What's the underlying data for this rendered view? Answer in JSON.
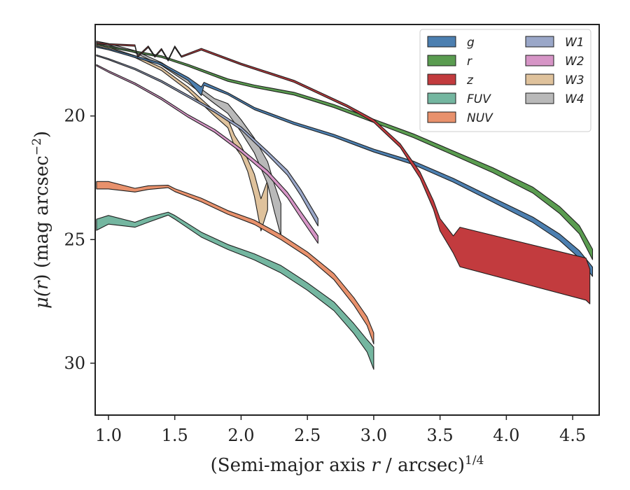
{
  "chart_data": {
    "type": "area",
    "xlabel_main": "(Semi-major axis ",
    "xlabel_var": "r",
    "xlabel_unit": " / arcsec)",
    "xlabel_sup": "1/4",
    "ylabel_pre": "μ(",
    "ylabel_var": "r",
    "ylabel_post": ") (mag arcsec",
    "ylabel_sup": "−2",
    "ylabel_close": ")",
    "xlim": [
      0.9,
      4.7
    ],
    "ylim": [
      32.1,
      16.3
    ],
    "y_inverted": true,
    "x_ticks": [
      1.0,
      1.5,
      2.0,
      2.5,
      3.0,
      3.5,
      4.0,
      4.5
    ],
    "x_tick_labels": [
      "1.0",
      "1.5",
      "2.0",
      "2.5",
      "3.0",
      "3.5",
      "4.0",
      "4.5"
    ],
    "y_ticks": [
      20,
      25,
      30
    ],
    "y_tick_labels": [
      "20",
      "25",
      "30"
    ],
    "legend_position": "top-right",
    "legend_columns": 2,
    "grid": false,
    "series": [
      {
        "name": "g",
        "color": "#4c7fb0",
        "x": [
          0.91,
          1.0,
          1.2,
          1.4,
          1.6,
          1.7,
          1.72,
          1.9,
          2.1,
          2.4,
          2.7,
          3.0,
          3.3,
          3.6,
          3.9,
          4.2,
          4.4,
          4.55,
          4.65
        ],
        "y": [
          17.2,
          17.3,
          17.6,
          17.9,
          18.5,
          19.0,
          18.7,
          19.1,
          19.7,
          20.3,
          20.8,
          21.4,
          21.9,
          22.6,
          23.4,
          24.2,
          24.9,
          25.6,
          26.3
        ],
        "w": [
          0.05,
          0.05,
          0.07,
          0.08,
          0.12,
          0.35,
          0.12,
          0.08,
          0.09,
          0.1,
          0.11,
          0.12,
          0.14,
          0.16,
          0.18,
          0.22,
          0.26,
          0.3,
          0.38
        ]
      },
      {
        "name": "r",
        "color": "#5a9c50",
        "x": [
          0.91,
          1.0,
          1.2,
          1.4,
          1.6,
          1.8,
          1.9,
          2.1,
          2.4,
          2.7,
          3.0,
          3.3,
          3.6,
          3.9,
          4.2,
          4.4,
          4.55,
          4.65
        ],
        "y": [
          17.1,
          17.2,
          17.4,
          17.6,
          17.95,
          18.35,
          18.55,
          18.8,
          19.1,
          19.6,
          20.2,
          20.8,
          21.5,
          22.2,
          23.0,
          23.8,
          24.6,
          25.6
        ],
        "w": [
          0.05,
          0.05,
          0.06,
          0.07,
          0.08,
          0.09,
          0.1,
          0.1,
          0.11,
          0.12,
          0.13,
          0.15,
          0.17,
          0.2,
          0.24,
          0.28,
          0.33,
          0.42
        ]
      },
      {
        "name": "z",
        "color": "#c23b3e",
        "x": [
          0.91,
          1.0,
          1.2,
          1.22,
          1.3,
          1.35,
          1.4,
          1.45,
          1.5,
          1.55,
          1.7,
          2.0,
          2.4,
          2.8,
          3.0,
          3.2,
          3.35,
          3.45,
          3.5,
          3.6,
          3.65,
          4.6,
          4.63
        ],
        "y": [
          17.05,
          17.1,
          17.15,
          17.6,
          17.2,
          17.6,
          17.3,
          17.75,
          17.2,
          17.6,
          17.3,
          17.9,
          18.6,
          19.6,
          20.2,
          21.2,
          22.4,
          23.6,
          24.4,
          25.2,
          25.3,
          26.6,
          26.9
        ],
        "w": [
          0.05,
          0.05,
          0.06,
          0.05,
          0.06,
          0.05,
          0.06,
          0.05,
          0.06,
          0.05,
          0.07,
          0.07,
          0.08,
          0.09,
          0.12,
          0.15,
          0.25,
          0.35,
          0.5,
          0.7,
          1.6,
          1.7,
          1.4
        ]
      },
      {
        "name": "FUV",
        "color": "#74b6a0",
        "x": [
          0.91,
          1.0,
          1.2,
          1.3,
          1.45,
          1.5,
          1.7,
          1.9,
          2.1,
          2.3,
          2.5,
          2.7,
          2.85,
          2.95,
          3.0
        ],
        "y": [
          24.4,
          24.2,
          24.4,
          24.2,
          23.95,
          24.1,
          24.8,
          25.3,
          25.7,
          26.2,
          26.9,
          27.7,
          28.6,
          29.3,
          29.8
        ],
        "w": [
          0.45,
          0.35,
          0.2,
          0.2,
          0.12,
          0.15,
          0.2,
          0.2,
          0.25,
          0.3,
          0.3,
          0.35,
          0.4,
          0.5,
          0.9
        ]
      },
      {
        "name": "NUV",
        "color": "#e8916c",
        "x": [
          0.91,
          1.0,
          1.2,
          1.3,
          1.45,
          1.5,
          1.7,
          1.9,
          2.1,
          2.3,
          2.5,
          2.7,
          2.85,
          2.95,
          3.0
        ],
        "y": [
          22.8,
          22.8,
          23.0,
          22.9,
          22.85,
          23.0,
          23.4,
          23.9,
          24.3,
          24.9,
          25.6,
          26.5,
          27.5,
          28.3,
          29.0
        ],
        "w": [
          0.3,
          0.3,
          0.15,
          0.15,
          0.1,
          0.12,
          0.15,
          0.15,
          0.18,
          0.2,
          0.2,
          0.25,
          0.3,
          0.35,
          0.45
        ]
      },
      {
        "name": "W1",
        "color": "#9aa7c8",
        "x": [
          0.91,
          1.0,
          1.2,
          1.4,
          1.6,
          1.8,
          2.0,
          2.2,
          2.35,
          2.45,
          2.58
        ],
        "y": [
          17.55,
          17.7,
          18.1,
          18.6,
          19.2,
          19.8,
          20.5,
          21.5,
          22.3,
          23.1,
          24.3
        ],
        "w": [
          0.04,
          0.05,
          0.06,
          0.07,
          0.08,
          0.1,
          0.12,
          0.15,
          0.2,
          0.25,
          0.3
        ]
      },
      {
        "name": "W2",
        "color": "#d695c6",
        "x": [
          0.91,
          1.0,
          1.2,
          1.4,
          1.6,
          1.8,
          2.0,
          2.2,
          2.35,
          2.45,
          2.58
        ],
        "y": [
          17.95,
          18.2,
          18.7,
          19.3,
          20.0,
          20.6,
          21.4,
          22.3,
          23.2,
          24.0,
          25.0
        ],
        "w": [
          0.05,
          0.06,
          0.07,
          0.08,
          0.1,
          0.12,
          0.14,
          0.18,
          0.22,
          0.26,
          0.3
        ]
      },
      {
        "name": "W3",
        "color": "#dfc29c",
        "x": [
          0.91,
          1.0,
          1.2,
          1.4,
          1.6,
          1.8,
          1.9,
          1.95,
          2.0,
          2.05,
          2.1,
          2.15,
          2.2
        ],
        "y": [
          17.15,
          17.25,
          17.6,
          18.1,
          18.9,
          19.9,
          20.3,
          21.0,
          21.4,
          22.0,
          22.8,
          24.0,
          23.2
        ],
        "w": [
          0.05,
          0.06,
          0.08,
          0.12,
          0.15,
          0.2,
          0.35,
          0.45,
          0.4,
          0.5,
          0.9,
          1.3,
          1.2
        ]
      },
      {
        "name": "W4",
        "color": "#b9b9b9",
        "x": [
          0.91,
          1.0,
          1.2,
          1.4,
          1.6,
          1.8,
          1.9,
          2.0,
          2.1,
          2.2,
          2.25,
          2.3
        ],
        "y": [
          17.0,
          17.1,
          17.4,
          17.9,
          18.6,
          19.4,
          19.7,
          20.4,
          21.2,
          22.3,
          23.3,
          24.2
        ],
        "w": [
          0.05,
          0.06,
          0.08,
          0.12,
          0.15,
          0.2,
          0.4,
          0.5,
          0.6,
          0.9,
          1.1,
          1.3
        ]
      }
    ]
  }
}
